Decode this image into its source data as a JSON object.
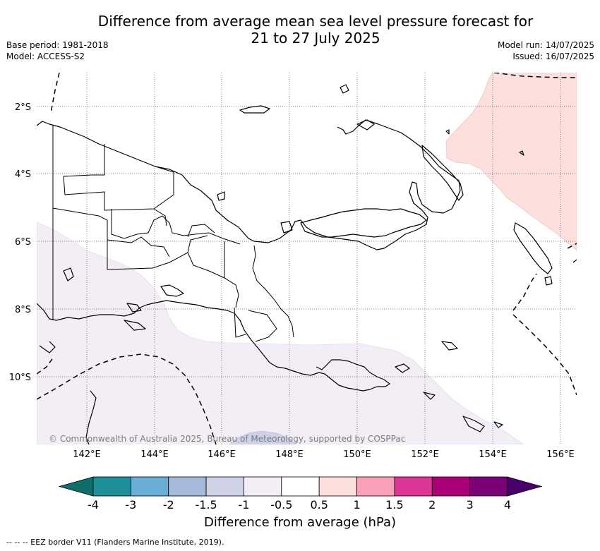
{
  "header": {
    "title_line1": "Difference from average mean sea level pressure forecast for",
    "title_line2": "21 to 27 July 2025",
    "base_period": "Base period: 1981-2018",
    "model": "Model: ACCESS-S2",
    "model_run": "Model run: 14/07/2025",
    "issued": "Issued: 16/07/2025"
  },
  "map": {
    "lat_labels": [
      "2°S",
      "4°S",
      "6°S",
      "8°S",
      "10°S"
    ],
    "lon_labels": [
      "142°E",
      "144°E",
      "146°E",
      "148°E",
      "150°E",
      "152°E",
      "154°E",
      "156°E"
    ],
    "copyright": "© Commonwealth of Australia 2025, Bureau of Meteorology, supported by COSPPac",
    "anomaly_regions": [
      {
        "value_range": "0.5 to 1",
        "area": "north-east (Bismarck Sea, New Ireland)",
        "color": "#fde0de"
      },
      {
        "value_range": "-1 to -0.5",
        "area": "south-west (Torres Strait, Gulf of Papua, Coral Sea)",
        "color": "#f3eef6"
      },
      {
        "value_range": "-1.5 to -1",
        "area": "small patch near southern edge",
        "color": "#cfd2e6"
      }
    ]
  },
  "colorbar": {
    "title": "Difference from average (hPa)",
    "tick_labels": [
      "-4",
      "-3",
      "-2",
      "-1.5",
      "-1",
      "-0.5",
      "0.5",
      "1",
      "1.5",
      "2",
      "3",
      "4"
    ],
    "colors": [
      "#0f6e6a",
      "#1f8f97",
      "#6aaed6",
      "#a5b9d8",
      "#cfd2e6",
      "#f3eef6",
      "#ffffff",
      "#fde0de",
      "#f9a0b8",
      "#de3597",
      "#ab0077",
      "#7a0177",
      "#49006a"
    ]
  },
  "footnote": "--  --  -- EEZ border V11 (Flanders Marine Institute, 2019)."
}
